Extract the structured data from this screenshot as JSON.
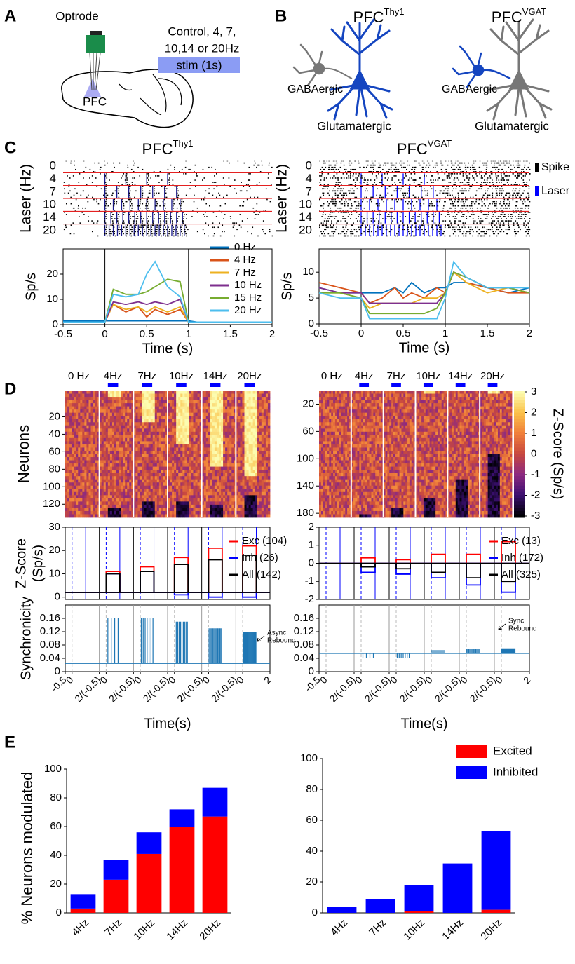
{
  "panels": {
    "A": {
      "label": "A",
      "optrode": "Optrode",
      "conditions": [
        "Control, 4, 7,",
        "10,14 or 20Hz"
      ],
      "stim": "stim (1s)",
      "region": "PFC"
    },
    "B": {
      "label": "B",
      "cells": [
        {
          "title": {
            "text": "PFC",
            "sup": "Thy1"
          },
          "gaba": "GABAergic",
          "glut": "Glutamatergic"
        },
        {
          "title": {
            "text": "PFC",
            "sup": "VGAT"
          },
          "gaba": "GABAergic",
          "glut": "Glutamatergic"
        }
      ]
    },
    "C": {
      "label": "C"
    },
    "D": {
      "label": "D"
    },
    "E": {
      "label": "E"
    }
  },
  "chart_data": [
    {
      "type": "raster",
      "title": {
        "text": "PFC",
        "sup": "Thy1"
      },
      "ylabel": "Laser (Hz)",
      "categories": [
        "0",
        "4",
        "7",
        "10",
        "14",
        "20"
      ],
      "laser_color": "#1a1a8c"
    },
    {
      "type": "raster",
      "title": {
        "text": "PFC",
        "sup": "VGAT"
      },
      "ylabel": "Laser (Hz)",
      "categories": [
        "0",
        "4",
        "7",
        "10",
        "14",
        "20"
      ],
      "laser_color": "#0000ff",
      "legend": [
        "Spike",
        "Laser"
      ]
    },
    {
      "type": "line",
      "x": [
        -0.5,
        -0.25,
        0,
        0.1,
        0.25,
        0.4,
        0.5,
        0.6,
        0.75,
        0.9,
        1,
        1.1,
        1.25,
        1.5,
        1.75,
        2
      ],
      "xlim": [
        -0.5,
        2
      ],
      "xticks": [
        -0.5,
        0,
        0.5,
        1,
        1.5,
        2
      ],
      "ylim": [
        0,
        30
      ],
      "yticks": [
        0,
        10,
        20
      ],
      "xlabel": "Time (s)",
      "ylabel": "Sp/s",
      "legend": true,
      "series": [
        {
          "name": "0 Hz",
          "color": "#0072bd",
          "values": [
            1.5,
            1.5,
            1.5,
            1.5,
            1.5,
            1.5,
            1.5,
            1.5,
            1.5,
            1.5,
            1.5,
            1,
            1,
            1,
            1,
            1
          ]
        },
        {
          "name": "4 Hz",
          "color": "#d95319",
          "values": [
            1,
            1,
            1,
            8,
            5,
            7,
            3,
            6,
            4,
            6,
            1,
            1,
            1,
            1,
            1,
            1
          ]
        },
        {
          "name": "7 Hz",
          "color": "#edb120",
          "values": [
            1,
            1,
            1,
            8,
            6,
            7,
            5,
            7,
            5,
            7,
            1,
            1,
            1,
            1,
            1,
            1
          ]
        },
        {
          "name": "10 Hz",
          "color": "#7e2f8e",
          "values": [
            1,
            1,
            1,
            9,
            8,
            9,
            8,
            9,
            8,
            10,
            1,
            1,
            1,
            1,
            1,
            1
          ]
        },
        {
          "name": "15 Hz",
          "color": "#77ac30",
          "values": [
            1,
            1,
            1,
            14,
            12,
            12,
            13,
            15,
            18,
            17,
            1,
            1,
            1,
            1,
            1,
            1
          ]
        },
        {
          "name": "20 Hz",
          "color": "#4dbeee",
          "values": [
            1,
            1,
            1,
            12,
            11,
            12,
            20,
            25,
            15,
            11,
            1,
            1,
            1,
            1,
            1,
            1
          ]
        }
      ]
    },
    {
      "type": "line",
      "x": [
        -0.5,
        -0.25,
        0,
        0.1,
        0.25,
        0.4,
        0.5,
        0.6,
        0.75,
        0.9,
        1,
        1.1,
        1.25,
        1.5,
        1.75,
        2
      ],
      "xlim": [
        -0.5,
        2
      ],
      "xticks": [
        -0.5,
        0,
        0.5,
        1,
        1.5,
        2
      ],
      "ylim": [
        0,
        14.5
      ],
      "yticks": [
        0,
        5,
        10
      ],
      "xlabel": "Time (s)",
      "ylabel": "Sp/s",
      "legend": false,
      "series": [
        {
          "name": "0 Hz",
          "color": "#0072bd",
          "values": [
            7,
            6,
            6,
            6,
            6,
            7,
            6,
            8,
            6,
            7,
            7,
            8,
            8,
            7,
            6,
            7
          ]
        },
        {
          "name": "4 Hz",
          "color": "#d95319",
          "values": [
            8,
            7,
            6,
            4,
            5,
            7,
            5,
            6,
            5,
            7,
            6,
            10,
            8,
            7,
            6,
            6
          ]
        },
        {
          "name": "7 Hz",
          "color": "#edb120",
          "values": [
            6,
            6,
            5,
            3,
            4,
            4,
            4,
            4,
            5,
            5,
            6,
            10,
            8,
            6,
            7,
            6
          ]
        },
        {
          "name": "10 Hz",
          "color": "#7e2f8e",
          "values": [
            7,
            6,
            6,
            4,
            4,
            4,
            4,
            4,
            4,
            4,
            6,
            10,
            9,
            7,
            7,
            6
          ]
        },
        {
          "name": "15 Hz",
          "color": "#77ac30",
          "values": [
            6,
            6,
            5,
            2,
            2,
            2,
            2,
            2,
            2,
            3,
            6,
            10,
            9,
            7,
            7,
            6
          ]
        },
        {
          "name": "20 Hz",
          "color": "#4dbeee",
          "values": [
            6,
            5,
            5,
            1,
            1,
            1,
            1,
            1,
            1,
            1,
            5,
            12,
            9,
            7,
            7,
            7
          ]
        }
      ]
    },
    {
      "type": "heatmap",
      "categories": [
        "0 Hz",
        "4Hz",
        "7Hz",
        "10Hz",
        "14Hz",
        "20Hz"
      ],
      "stim_color": "#0000ff",
      "ylim": [
        -10,
        135
      ],
      "yticks": [
        20,
        40,
        60,
        80,
        100,
        120
      ],
      "ylabel": "Neurons"
    },
    {
      "type": "heatmap",
      "categories": [
        "0 Hz",
        "4Hz",
        "7Hz",
        "10Hz",
        "14Hz",
        "20Hz"
      ],
      "stim_color": "#0000ff",
      "ylim": [
        0,
        186
      ],
      "yticks": [
        20,
        60,
        100,
        140,
        180
      ],
      "colorbar": {
        "label": "Z-Score (Sp/s)",
        "lim": [
          -3,
          3
        ],
        "ticks": [
          3,
          2,
          1,
          0,
          -1,
          -2,
          -3
        ]
      }
    },
    {
      "type": "segments",
      "ylim": [
        -1,
        30
      ],
      "yticks": [
        0,
        10,
        20,
        30
      ],
      "ylabel": [
        "Z-Score",
        "(Sp/s)"
      ],
      "series": [
        {
          "name": "Exc (104)",
          "color": "#ff0000",
          "values": [
            2,
            11,
            13,
            17,
            21,
            22
          ]
        },
        {
          "name": "Inh (26)",
          "color": "#0000ff",
          "values": [
            2,
            10,
            11,
            1,
            0,
            0
          ]
        },
        {
          "name": "All (142)",
          "color": "#000000",
          "values": [
            2,
            10,
            11,
            14,
            16,
            18
          ]
        }
      ]
    },
    {
      "type": "segments",
      "ylim": [
        -2,
        2
      ],
      "yticks": [
        -2,
        -1,
        0,
        1,
        2
      ],
      "series": [
        {
          "name": "Exc (13)",
          "color": "#ff0000",
          "values": [
            0,
            0.3,
            0.2,
            0.5,
            0.5,
            1.2
          ]
        },
        {
          "name": "Inh (172)",
          "color": "#0000ff",
          "values": [
            0,
            -0.5,
            -0.6,
            -0.8,
            -1.2,
            -1.6
          ]
        },
        {
          "name": "All (325)",
          "color": "#000000",
          "values": [
            0,
            -0.2,
            -0.3,
            -0.5,
            -0.8,
            -1
          ]
        }
      ]
    },
    {
      "type": "sync",
      "ylim": [
        0,
        0.2
      ],
      "yticks": [
        0,
        0.04,
        0.08,
        0.12,
        0.16
      ],
      "ylabel": "Synchronicity",
      "xlabel": "Time(s)",
      "color": "#1f77b4",
      "xticklabels": [
        "-0.5",
        "0",
        "2/(-0.5)",
        "0",
        "2/(-0.5)",
        "0",
        "2/(-0.5)",
        "0",
        "2/(-0.5)",
        "0",
        "2/(-0.5)",
        "0",
        "2"
      ],
      "values": [
        0.025,
        0.16,
        0.16,
        0.15,
        0.13,
        0.12
      ],
      "annotation": [
        "Async",
        "Rebound"
      ]
    },
    {
      "type": "sync",
      "ylim": [
        0,
        0.2
      ],
      "yticks": [
        0,
        0.04,
        0.08,
        0.12,
        0.16
      ],
      "xlabel": "Time(s)",
      "color": "#1f77b4",
      "xticklabels": [
        "-0.5",
        "0",
        "2/(-0.5)",
        "0",
        "2/(-0.5)",
        "0",
        "2/(-0.5)",
        "0",
        "2/(-0.5)",
        "0",
        "2/(-0.5)",
        "0",
        "2"
      ],
      "values": [
        0.055,
        0.04,
        0.04,
        0.065,
        0.068,
        0.07
      ],
      "annotation": [
        "Sync",
        "Rebound"
      ]
    },
    {
      "type": "bar",
      "categories": [
        "4Hz",
        "7Hz",
        "10Hz",
        "14Hz",
        "20Hz"
      ],
      "ylim": [
        0,
        100
      ],
      "yticks": [
        0,
        20,
        40,
        60,
        80,
        100
      ],
      "ylabel": "% Neurons modulated",
      "legend": false,
      "series": [
        {
          "name": "Excited",
          "color": "#ff0000",
          "values": [
            3,
            23,
            41,
            60,
            67
          ]
        },
        {
          "name": "Inhibited",
          "color": "#0000ff",
          "values": [
            10,
            14,
            15,
            12,
            20
          ]
        }
      ]
    },
    {
      "type": "bar",
      "categories": [
        "4Hz",
        "7Hz",
        "10Hz",
        "14Hz",
        "20Hz"
      ],
      "ylim": [
        0,
        100
      ],
      "yticks": [
        0,
        20,
        40,
        60,
        80,
        100
      ],
      "legend": true,
      "series": [
        {
          "name": "Excited",
          "color": "#ff0000",
          "values": [
            0,
            0,
            1,
            0,
            2
          ]
        },
        {
          "name": "Inhibited",
          "color": "#0000ff",
          "values": [
            4,
            9,
            17,
            32,
            51
          ]
        }
      ]
    }
  ]
}
